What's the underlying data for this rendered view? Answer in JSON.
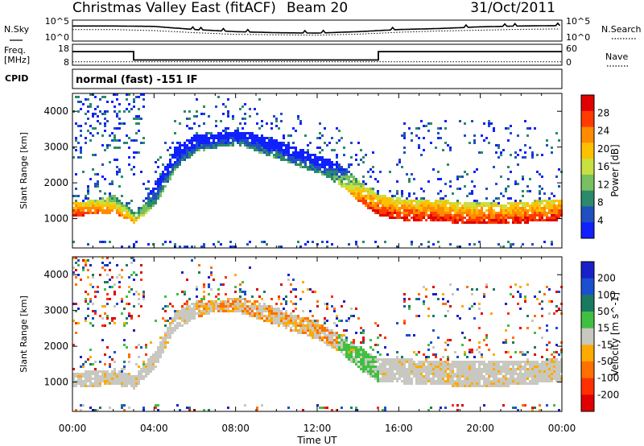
{
  "header": {
    "title": "Christmas Valley East (fitACF)",
    "beam": "Beam 20",
    "date": "31/Oct/2011"
  },
  "side_labels": {
    "nsky": "N.Sky",
    "nsearch": "N.Search",
    "freq": "Freq.",
    "freq_unit": "[MHz]",
    "nave": "Nave",
    "cpid": "CPID"
  },
  "noise_axis": {
    "left_ticks": [
      "10^5",
      "10^0"
    ],
    "right_ticks": [
      "10^5",
      "10^0"
    ]
  },
  "freq_axis": {
    "left_ticks": [
      "18",
      "8"
    ],
    "right_ticks": [
      "60",
      "0"
    ]
  },
  "cpid_text": "normal (fast) -151 IF",
  "chart_data": [
    {
      "type": "line",
      "name": "noise",
      "series": [
        {
          "name": "N.Sky",
          "style": "solid"
        },
        {
          "name": "N.Search",
          "style": "dotted"
        }
      ],
      "x": [
        "00:00",
        "02:00",
        "04:00",
        "06:00",
        "08:00",
        "10:00",
        "12:00",
        "14:00",
        "16:00",
        "18:00",
        "20:00",
        "22:00",
        "24:00"
      ],
      "sky_level": [
        0.72,
        0.72,
        0.7,
        0.55,
        0.45,
        0.4,
        0.38,
        0.45,
        0.55,
        0.6,
        0.68,
        0.72,
        0.74
      ],
      "search_level": [
        0.55,
        0.55,
        0.5,
        0.4,
        0.32,
        0.3,
        0.28,
        0.33,
        0.42,
        0.48,
        0.52,
        0.56,
        0.58
      ]
    },
    {
      "type": "line",
      "name": "frequency-nave",
      "x": [
        "00:00",
        "03:00",
        "03:00",
        "15:00",
        "15:00",
        "24:00"
      ],
      "freq_mhz": [
        14.5,
        14.5,
        10.5,
        10.5,
        14.5,
        14.5
      ],
      "nave": [
        10,
        10,
        10,
        10,
        10,
        10
      ],
      "freq_range": [
        8,
        18
      ],
      "nave_range": [
        0,
        60
      ]
    },
    {
      "type": "heatmap",
      "name": "power",
      "ylabel": "Slant Range [km]",
      "ylim": [
        180,
        4500
      ],
      "y_ticks": [
        1000,
        2000,
        3000,
        4000
      ],
      "colorbar_label": "Power [dB]",
      "colorbar_ticks": [
        28,
        24,
        20,
        16,
        12,
        8,
        4
      ],
      "colorbar_colors": [
        "#e00000",
        "#ff3b00",
        "#ff8c00",
        "#ffc000",
        "#c8e040",
        "#78c060",
        "#2a8a6a",
        "#2050c0",
        "#1020ff"
      ],
      "x_hours": [
        0,
        1,
        2,
        3,
        4,
        5,
        6,
        7,
        8,
        9,
        10,
        11,
        12,
        13,
        14,
        15,
        16,
        17,
        18,
        19,
        20,
        21,
        22,
        23,
        24
      ],
      "strong_band_km": [
        [
          1100,
          1500
        ],
        [
          1150,
          1550
        ],
        [
          1200,
          1700
        ],
        [
          900,
          1200
        ],
        [
          1400,
          2000
        ],
        [
          2400,
          3000
        ],
        [
          2900,
          3400
        ],
        [
          3000,
          3400
        ],
        [
          3100,
          3500
        ],
        [
          2900,
          3400
        ],
        [
          2700,
          3200
        ],
        [
          2500,
          3000
        ],
        [
          2300,
          2800
        ],
        [
          2000,
          2600
        ],
        [
          1500,
          2100
        ],
        [
          1100,
          1700
        ],
        [
          1000,
          1600
        ],
        [
          950,
          1550
        ],
        [
          950,
          1550
        ],
        [
          900,
          1500
        ],
        [
          900,
          1500
        ],
        [
          850,
          1450
        ],
        [
          900,
          1500
        ],
        [
          950,
          1550
        ],
        [
          1000,
          1600
        ]
      ],
      "band_power_db": [
        28,
        26,
        22,
        20,
        10,
        8,
        8,
        8,
        8,
        8,
        8,
        8,
        8,
        12,
        24,
        28,
        28,
        28,
        28,
        27,
        27,
        28,
        28,
        28,
        28
      ]
    },
    {
      "type": "heatmap",
      "name": "velocity",
      "xlabel": "Time UT",
      "ylabel": "Slant Range [km]",
      "ylim": [
        180,
        4500
      ],
      "y_ticks": [
        1000,
        2000,
        3000,
        4000
      ],
      "x_ticks": [
        "00:00",
        "04:00",
        "08:00",
        "12:00",
        "16:00",
        "20:00",
        "00:00"
      ],
      "colorbar_label": "Velocity [m s^-1]",
      "colorbar_ticks": [
        200,
        100,
        50,
        15,
        -15,
        -50,
        -100,
        -200
      ],
      "colorbar_colors": [
        "#1a20c8",
        "#1a50d0",
        "#1a7a60",
        "#40c040",
        "#c8c8c0",
        "#ffaa00",
        "#ff7000",
        "#ff3000",
        "#e00000"
      ],
      "ground_scatter_band_km": [
        [
          900,
          1300
        ],
        [
          900,
          1350
        ],
        [
          950,
          1400
        ],
        [
          850,
          1200
        ],
        [
          1400,
          1900
        ],
        [
          2500,
          3000
        ],
        [
          2800,
          3300
        ],
        [
          3000,
          3300
        ],
        [
          3000,
          3400
        ],
        [
          2800,
          3300
        ],
        [
          2600,
          3100
        ],
        [
          2400,
          2900
        ],
        [
          2200,
          2700
        ],
        [
          1900,
          2400
        ],
        [
          1400,
          2000
        ],
        [
          1000,
          1700
        ],
        [
          1000,
          1700
        ],
        [
          950,
          1650
        ],
        [
          950,
          1650
        ],
        [
          900,
          1600
        ],
        [
          900,
          1600
        ],
        [
          900,
          1600
        ],
        [
          950,
          1600
        ],
        [
          1000,
          1650
        ],
        [
          1050,
          1700
        ]
      ]
    }
  ]
}
